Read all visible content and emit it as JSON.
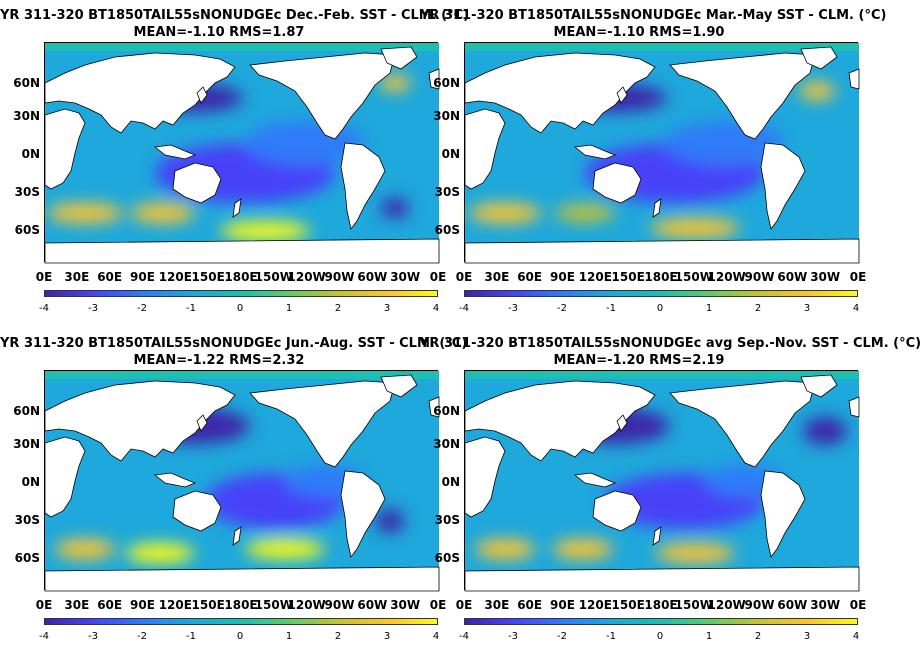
{
  "panels": [
    {
      "title_line1": "YR 311-320 BT1850TAIL55sNONUDGEc  Dec.-Feb. SST - CLM. (°C)",
      "title_line2": "MEAN=-1.10   RMS=1.87"
    },
    {
      "title_line1": "YR 311-320 BT1850TAIL55sNONUDGEc Mar.-May SST - CLM. (°C)",
      "title_line2": "MEAN=-1.10   RMS=1.90"
    },
    {
      "title_line1": "YR 311-320 BT1850TAIL55sNONUDGEc Jun.-Aug. SST - CLM. (°C)",
      "title_line2": "MEAN=-1.22   RMS=2.32"
    },
    {
      "title_line1": "YR 311-320 BT1850TAIL55sNONUDGEc avg Sep.-Nov. SST - CLM. (°C)",
      "title_line2": "MEAN=-1.20   RMS=2.19"
    }
  ],
  "lat_labels": [
    "60N",
    "30N",
    "0N",
    "30S",
    "60S"
  ],
  "lon_labels": [
    "0E",
    "30E",
    "60E",
    "90E",
    "120E",
    "150E",
    "180E",
    "150W",
    "120W",
    "90W",
    "60W",
    "30W",
    "0E"
  ],
  "colorbar": {
    "ticks": [
      "-4",
      "-3",
      "-2",
      "-1",
      "0",
      "1",
      "2",
      "3",
      "4"
    ],
    "range": [
      -4,
      4
    ],
    "colormap": "parula",
    "colors": [
      "#3e26a8",
      "#4743f8",
      "#2f7bf8",
      "#1ea8db",
      "#1cbfb0",
      "#63c96a",
      "#c3c337",
      "#fbc430",
      "#f9fb15"
    ]
  },
  "land_color": "#ffffff",
  "background_field_color": "#1ea8db"
}
